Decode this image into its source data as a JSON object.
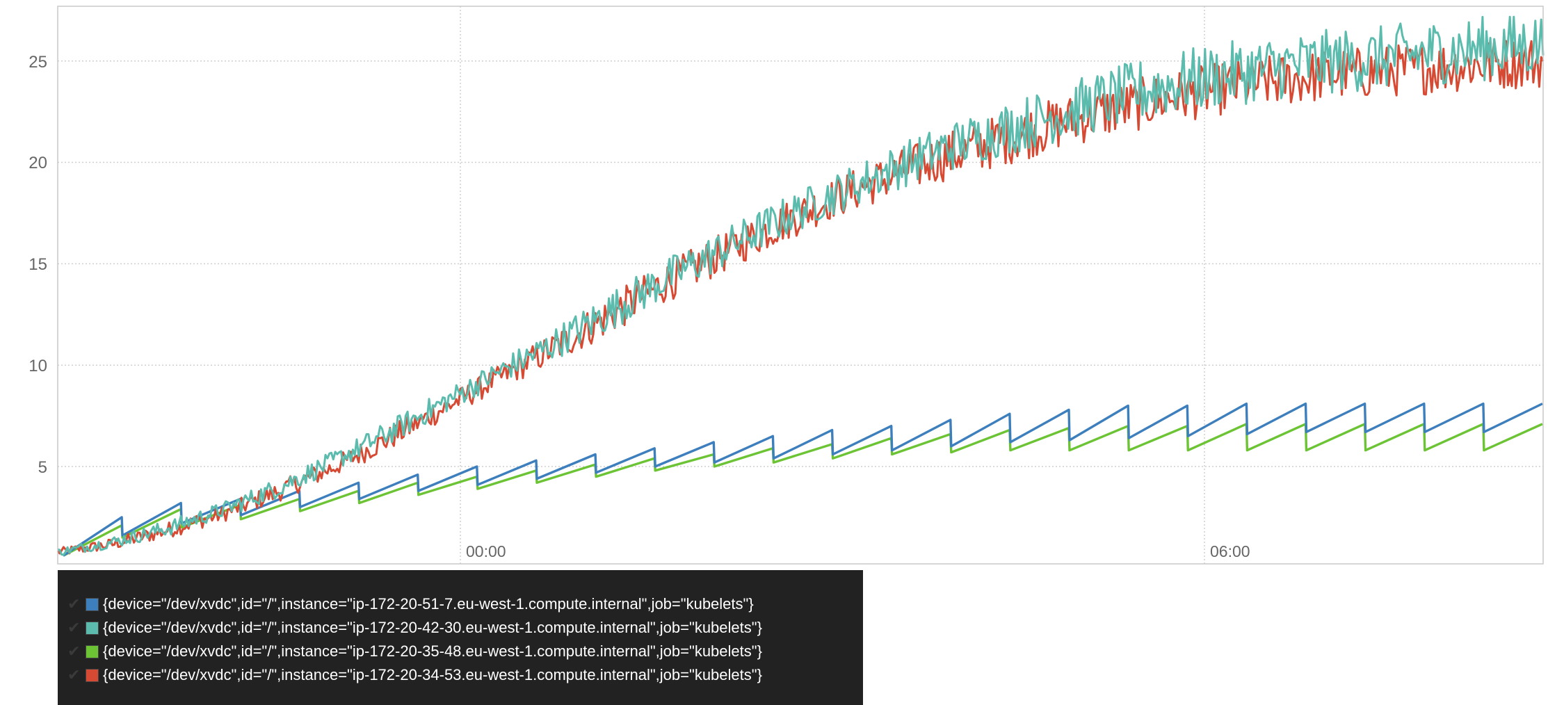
{
  "chart_data": {
    "type": "line",
    "x_ticks": [
      "00:00",
      "06:00"
    ],
    "y_ticks": [
      "5",
      "10",
      "15",
      "20",
      "25"
    ],
    "ylim": [
      0.2,
      27.7
    ],
    "grid": true,
    "legend_position": "bottom",
    "series": [
      {
        "name": "{device=\"/dev/xvdc\",id=\"/\",instance=\"ip-172-20-51-7.eu-west-1.compute.internal\",job=\"kubelets\"}",
        "color": "#3d7fbd",
        "shape": "sawtooth",
        "trough": [
          0.6,
          1.6,
          2.2,
          2.6,
          3.0,
          3.4,
          3.8,
          4.1,
          4.4,
          4.7,
          5.0,
          5.2,
          5.4,
          5.6,
          5.8,
          6.0,
          6.2,
          6.3,
          6.4,
          6.5,
          6.6,
          6.7,
          6.7,
          6.7,
          6.7
        ],
        "peak": [
          2.5,
          3.2,
          3.4,
          3.8,
          4.2,
          4.6,
          5.0,
          5.3,
          5.6,
          5.9,
          6.2,
          6.5,
          6.8,
          7.0,
          7.3,
          7.6,
          7.8,
          8.0,
          8.0,
          8.1,
          8.1,
          8.1,
          8.1,
          8.1,
          8.1
        ]
      },
      {
        "name": "{device=\"/dev/xvdc\",id=\"/\",instance=\"ip-172-20-42-30.eu-west-1.compute.internal\",job=\"kubelets\"}",
        "color": "#5bbcae",
        "shape": "noisy",
        "trend": [
          0.8,
          1.3,
          2.0,
          2.9,
          4.0,
          5.3,
          6.7,
          8.2,
          9.7,
          11.1,
          12.7,
          14.3,
          15.7,
          17.1,
          18.4,
          19.6,
          20.7,
          21.6,
          22.4,
          23.2,
          23.9,
          24.4,
          24.8,
          25.1,
          25.3,
          25.6,
          25.8,
          26.0
        ],
        "noise": [
          0.2,
          0.3,
          0.4,
          0.4,
          0.5,
          0.5,
          0.6,
          0.6,
          0.6,
          0.8,
          1.0,
          1.0,
          1.0,
          1.0,
          1.0,
          1.1,
          1.2,
          1.3,
          1.4,
          1.5,
          1.6,
          1.6,
          1.6,
          1.6,
          1.6,
          1.6,
          1.6,
          1.6
        ]
      },
      {
        "name": "{device=\"/dev/xvdc\",id=\"/\",instance=\"ip-172-20-35-48.eu-west-1.compute.internal\",job=\"kubelets\"}",
        "color": "#6cc435",
        "shape": "sawtooth",
        "trough": [
          0.6,
          1.5,
          2.0,
          2.4,
          2.8,
          3.2,
          3.6,
          3.9,
          4.2,
          4.5,
          4.8,
          5.0,
          5.2,
          5.4,
          5.6,
          5.7,
          5.8,
          5.8,
          5.8,
          5.8,
          5.8,
          5.8,
          5.8,
          5.8,
          5.8
        ],
        "peak": [
          2.1,
          2.9,
          3.1,
          3.4,
          3.8,
          4.2,
          4.5,
          4.8,
          5.1,
          5.4,
          5.6,
          5.9,
          6.1,
          6.4,
          6.6,
          6.8,
          6.9,
          7.0,
          7.0,
          7.1,
          7.1,
          7.1,
          7.1,
          7.1,
          7.1
        ]
      },
      {
        "name": "{device=\"/dev/xvdc\",id=\"/\",instance=\"ip-172-20-34-53.eu-west-1.compute.internal\",job=\"kubelets\"}",
        "color": "#d64a34",
        "shape": "noisy",
        "trend": [
          0.8,
          1.2,
          1.9,
          2.7,
          3.8,
          5.0,
          6.4,
          7.9,
          9.4,
          10.9,
          12.5,
          14.1,
          15.5,
          16.9,
          18.2,
          19.3,
          20.3,
          21.1,
          21.9,
          22.6,
          23.2,
          23.7,
          24.1,
          24.4,
          24.6,
          24.8,
          25.0,
          25.1
        ],
        "noise": [
          0.2,
          0.3,
          0.4,
          0.4,
          0.5,
          0.5,
          0.6,
          0.6,
          0.6,
          0.8,
          1.0,
          1.0,
          1.0,
          1.0,
          1.0,
          1.1,
          1.2,
          1.3,
          1.3,
          1.3,
          1.3,
          1.3,
          1.3,
          1.3,
          1.3,
          1.3,
          1.3,
          1.3
        ]
      }
    ]
  }
}
